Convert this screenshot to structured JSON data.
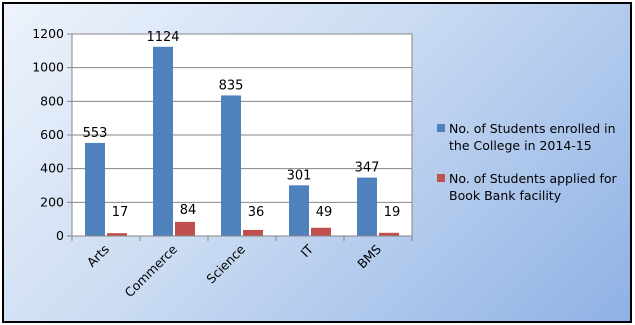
{
  "chart_data": {
    "type": "bar",
    "title": "",
    "xlabel": "",
    "ylabel": "",
    "categories": [
      "Arts",
      "Commerce",
      "Science",
      "IT",
      "BMS"
    ],
    "series": [
      {
        "name": "No. of Students enrolled in the College in 2014-15",
        "values": [
          553,
          1124,
          835,
          301,
          347
        ],
        "color": "#4f81bd"
      },
      {
        "name": "No. of Students applied for Book Bank facility",
        "values": [
          17,
          84,
          36,
          49,
          19
        ],
        "color": "#c0504d"
      }
    ],
    "ylim": [
      0,
      1200
    ],
    "yticks": [
      0,
      200,
      400,
      600,
      800,
      1000,
      1200
    ],
    "data_labels": true,
    "grid": true,
    "legend_position": "right"
  }
}
